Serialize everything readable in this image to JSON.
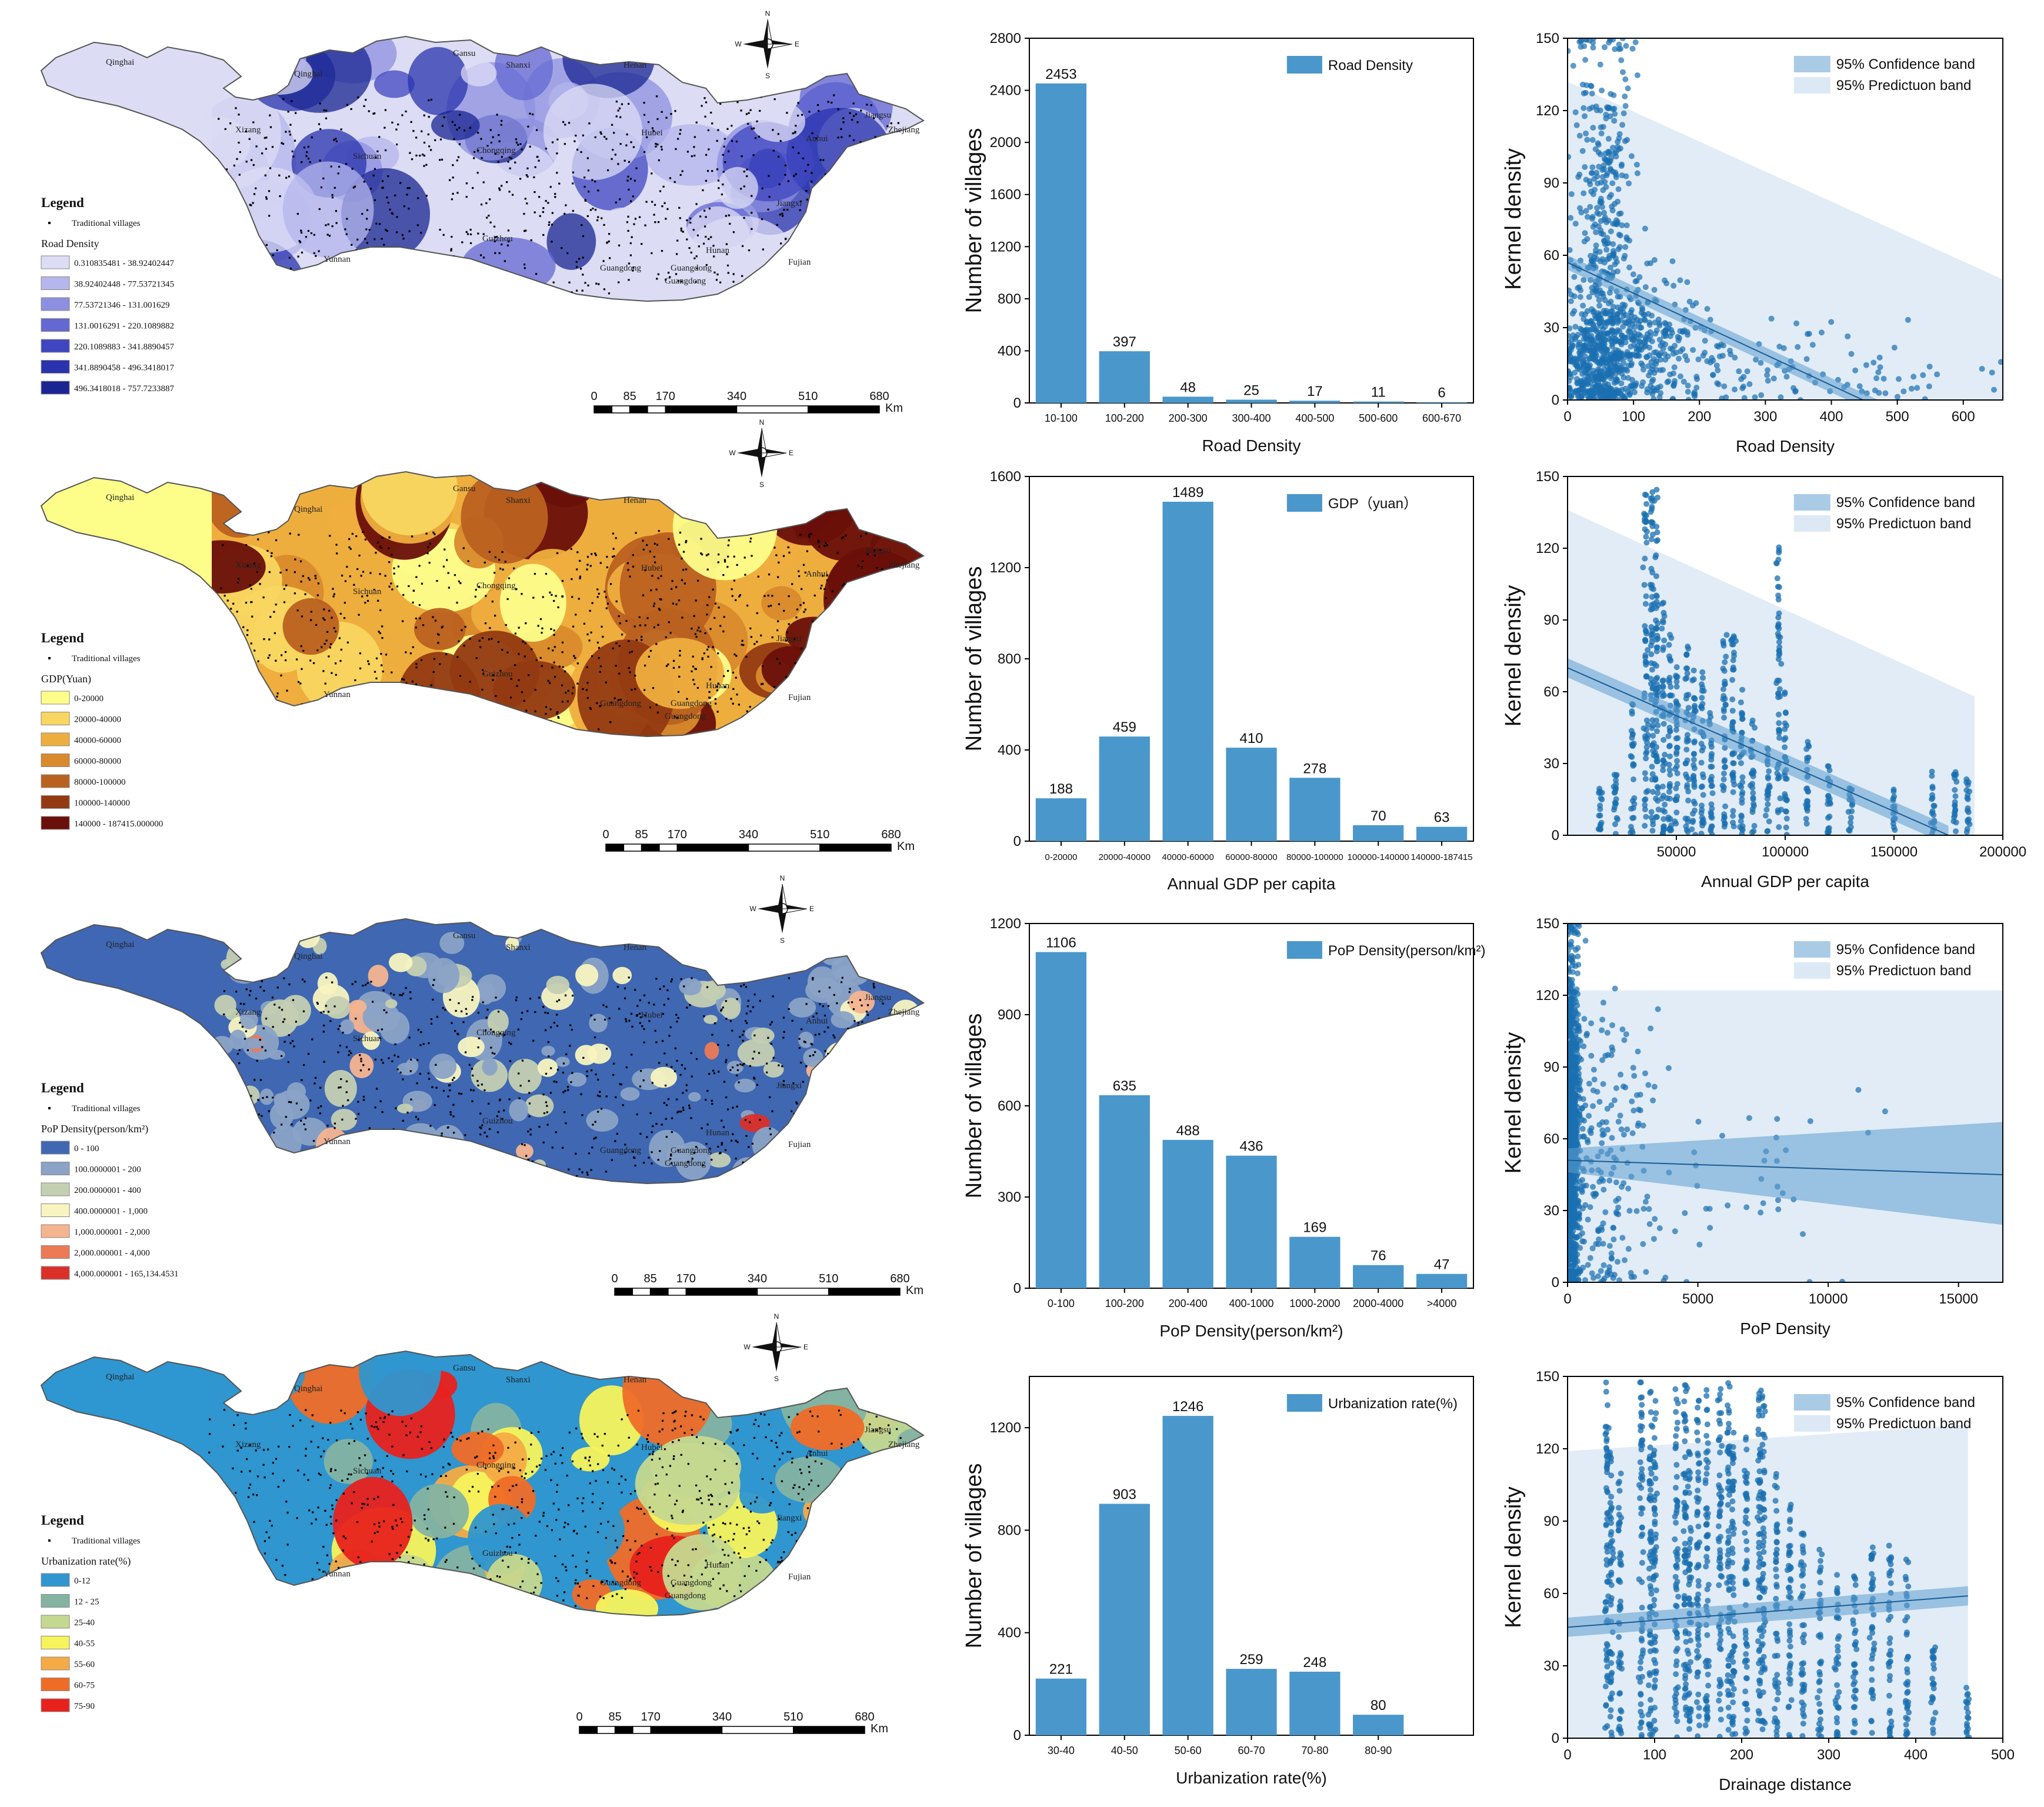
{
  "maps": [
    {
      "key": "road",
      "legend_heading": "Legend",
      "villages_label": "Traditional villages",
      "variable_title": "Road Density",
      "classes": [
        {
          "label": "0.310835481 - 38.92402447",
          "color": "#dcdcf4"
        },
        {
          "label": "38.92402448 - 77.53721345",
          "color": "#b4b6ec"
        },
        {
          "label": "77.53721346 - 131.001629",
          "color": "#8d90e0"
        },
        {
          "label": "131.0016291 - 220.1089882",
          "color": "#6468d2"
        },
        {
          "label": "220.1089883 - 341.8890457",
          "color": "#3f46c0"
        },
        {
          "label": "341.8890458 - 496.3418017",
          "color": "#2833ad"
        },
        {
          "label": "496.3418018 - 757.7233887",
          "color": "#1a2592"
        }
      ],
      "province_labels": [
        "Qinghai",
        "Qinghai",
        "Gansu",
        "Shanxi",
        "Henan",
        "Xizang",
        "Sichuan",
        "Chongqing",
        "Hubei",
        "Guizhou",
        "Yunnan",
        "Guangdong",
        "Guangdong",
        "Guangdong",
        "Hunan",
        "Jiangxi",
        "Anhui",
        "Jiangsu",
        "Zhejiang",
        "Fujian"
      ],
      "scale_ticks": [
        "0",
        "85",
        "170",
        "340",
        "510",
        "680"
      ],
      "scale_unit": "Km"
    },
    {
      "key": "gdp",
      "legend_heading": "Legend",
      "villages_label": "Traditional villages",
      "variable_title": "GDP(Yuan)",
      "classes": [
        {
          "label": "0-20000",
          "color": "#fdfd8a"
        },
        {
          "label": "20000-40000",
          "color": "#f8d660"
        },
        {
          "label": "40000-60000",
          "color": "#eeae3e"
        },
        {
          "label": "60000-80000",
          "color": "#d98a2c"
        },
        {
          "label": "80000-100000",
          "color": "#bb6120"
        },
        {
          "label": "100000-140000",
          "color": "#933a12"
        },
        {
          "label": "140000 - 187415.000000",
          "color": "#6a0f0a"
        }
      ],
      "province_labels": [
        "Qinghai",
        "Qinghai",
        "Gansu",
        "Shanxi",
        "Henan",
        "Xizang",
        "Sichuan",
        "Chongqing",
        "Hubei",
        "Guizhou",
        "Yunnan",
        "Guangdong",
        "Guangdong",
        "Guangdong",
        "Hunan",
        "Jiangxi",
        "Anhui",
        "Jiangsu",
        "Zhejiang",
        "Fujian"
      ],
      "scale_ticks": [
        "0",
        "85",
        "170",
        "340",
        "510",
        "680"
      ],
      "scale_unit": "Km"
    },
    {
      "key": "pop",
      "legend_heading": "Legend",
      "villages_label": "Traditional villages",
      "variable_title": "PoP Density(person/km²)",
      "classes": [
        {
          "label": "0 - 100",
          "color": "#3f67b2"
        },
        {
          "label": "100.0000001 - 200",
          "color": "#8aa3c6"
        },
        {
          "label": "200.0000001 - 400",
          "color": "#c4cfb2"
        },
        {
          "label": "400.0000001 - 1,000",
          "color": "#f8f4c0"
        },
        {
          "label": "1,000.000001 - 2,000",
          "color": "#f5b490"
        },
        {
          "label": "2,000.000001 - 4,000",
          "color": "#ec7a55"
        },
        {
          "label": "4,000.000001 - 165,134.4531",
          "color": "#dc2f2a"
        }
      ],
      "province_labels": [
        "Qinghai",
        "Qinghai",
        "Gansu",
        "Shanxi",
        "Henan",
        "Xizang",
        "Sichuan",
        "Chongqing",
        "Hubei",
        "Guizhou",
        "Yunnan",
        "Guangdong",
        "Guangdong",
        "Guangdong",
        "Hunan",
        "Jiangxi",
        "Anhui",
        "Jiangsu",
        "Zhejiang",
        "Fujian"
      ],
      "scale_ticks": [
        "0",
        "85",
        "170",
        "340",
        "510",
        "680"
      ],
      "scale_unit": "Km"
    },
    {
      "key": "urban",
      "legend_heading": "Legend",
      "villages_label": "Traditional villages",
      "variable_title": "Urbanization rate(%)",
      "classes": [
        {
          "label": "0-12",
          "color": "#2f96cf"
        },
        {
          "label": "12 - 25",
          "color": "#84b3a2"
        },
        {
          "label": "25-40",
          "color": "#c5d88f"
        },
        {
          "label": "40-55",
          "color": "#f7f35b"
        },
        {
          "label": "55-60",
          "color": "#f4ab45"
        },
        {
          "label": "60-75",
          "color": "#ef6c27"
        },
        {
          "label": "75-90",
          "color": "#e8211c"
        }
      ],
      "province_labels": [
        "Qinghai",
        "Qinghai",
        "Gansu",
        "Shanxi",
        "Henan",
        "Xizang",
        "Sichuan",
        "Chongqing",
        "Hubei",
        "Guizhou",
        "Yunnan",
        "Guangdong",
        "Guangdong",
        "Guangdong",
        "Hunan",
        "Jiangxi",
        "Anhui",
        "Jiangsu",
        "Zhejiang",
        "Fujian"
      ],
      "scale_ticks": [
        "0",
        "85",
        "170",
        "340",
        "510",
        "680"
      ],
      "scale_unit": "Km"
    }
  ],
  "compass": {
    "n": "N",
    "s": "S",
    "e": "E",
    "w": "W"
  },
  "chart_data": [
    {
      "type": "bar",
      "id": "bar-road",
      "title": "",
      "legend": "Road Density",
      "categories": [
        "10-100",
        "100-200",
        "200-300",
        "300-400",
        "400-500",
        "500-600",
        "600-670"
      ],
      "values": [
        2453,
        397,
        48,
        25,
        17,
        11,
        6
      ],
      "value_labels": [
        "2453",
        "397",
        "48",
        "25",
        "17",
        "11",
        "6"
      ],
      "xlabel": "Road Density",
      "ylabel": "Number of villages",
      "ylim": [
        0,
        2800
      ],
      "yticks": [
        0,
        400,
        800,
        1200,
        1600,
        2000,
        2400,
        2800
      ],
      "color": "#4a97cb"
    },
    {
      "type": "scatter",
      "id": "sc-road",
      "xlabel": "Road Density",
      "ylabel": "Kernel density",
      "xlim": [
        0,
        660
      ],
      "ylim": [
        0,
        150
      ],
      "xticks": [
        0,
        100,
        200,
        300,
        400,
        500,
        600
      ],
      "yticks": [
        0,
        30,
        60,
        90,
        120,
        150
      ],
      "legend": [
        "95% Confidence band",
        "95% Predictuon band"
      ],
      "fit": {
        "x0": 0,
        "y0": 57,
        "x1": 660,
        "y1": -27
      },
      "pred_band": {
        "x0": 0,
        "lo0": 0,
        "hi0": 132,
        "x1": 660,
        "lo1": 0,
        "hi1": 50
      },
      "conf_half_width": 3,
      "clusters": [
        {
          "xc": 55,
          "xs": 22,
          "yc": 75,
          "ys": 45,
          "n": 380
        },
        {
          "xc": 45,
          "xs": 25,
          "yc": 15,
          "ys": 12,
          "n": 380
        },
        {
          "xc": 110,
          "xs": 45,
          "yc": 25,
          "ys": 15,
          "n": 280
        },
        {
          "xc": 260,
          "xs": 110,
          "yc": 14,
          "ys": 10,
          "n": 110
        },
        {
          "xc": 520,
          "xs": 80,
          "yc": 8,
          "ys": 6,
          "n": 25
        }
      ],
      "color": "#1a6fb0"
    },
    {
      "type": "bar",
      "id": "bar-gdp",
      "title": "",
      "legend": "GDP（yuan）",
      "categories": [
        "0-20000",
        "20000-40000",
        "40000-60000",
        "60000-80000",
        "80000-100000",
        "100000-140000",
        "140000-187415"
      ],
      "values": [
        188,
        459,
        1489,
        410,
        278,
        70,
        63
      ],
      "value_labels": [
        "188",
        "459",
        "1489",
        "410",
        "278",
        "70",
        "63"
      ],
      "xlabel": "Annual GDP per capita",
      "ylabel": "Number of villages",
      "ylim": [
        0,
        1600
      ],
      "yticks": [
        0,
        400,
        800,
        1200,
        1600
      ],
      "color": "#4a97cb"
    },
    {
      "type": "scatter",
      "id": "sc-gdp",
      "xlabel": "Annual GDP per capita",
      "ylabel": "Kernel density",
      "xlim": [
        0,
        200000
      ],
      "ylim": [
        0,
        150
      ],
      "xticks": [
        50000,
        100000,
        150000,
        200000
      ],
      "yticks": [
        0,
        30,
        60,
        90,
        120,
        150
      ],
      "legend": [
        "95% Confidence band",
        "95% Predictuon band"
      ],
      "fit": {
        "x0": 0,
        "y0": 70,
        "x1": 175000,
        "y1": 0
      },
      "pred_band": {
        "x0": 0,
        "lo0": 0,
        "hi0": 136,
        "x1": 187000,
        "lo1": 0,
        "hi1": 58
      },
      "conf_half_width": 4,
      "columns": [
        15000,
        22000,
        30000,
        36000,
        39000,
        41000,
        44000,
        47000,
        50000,
        55000,
        58000,
        62000,
        66000,
        72000,
        76000,
        80000,
        85000,
        92000,
        97000,
        100000,
        110000,
        120000,
        130000,
        150000,
        168000,
        178000,
        184000
      ],
      "column_max": [
        22,
        30,
        55,
        145,
        145,
        145,
        98,
        90,
        75,
        80,
        70,
        70,
        55,
        88,
        85,
        65,
        50,
        40,
        128,
        60,
        40,
        30,
        20,
        20,
        28,
        27,
        24
      ],
      "color": "#1a6fb0"
    },
    {
      "type": "bar",
      "id": "bar-pop",
      "title": "",
      "legend": "PoP Density(person/km²)",
      "categories": [
        "0-100",
        "100-200",
        "200-400",
        "400-1000",
        "1000-2000",
        "2000-4000",
        ">4000"
      ],
      "values": [
        1106,
        635,
        488,
        436,
        169,
        76,
        47
      ],
      "value_labels": [
        "1106",
        "635",
        "488",
        "436",
        "169",
        "76",
        "47"
      ],
      "xlabel": "PoP Density(person/km²)",
      "ylabel": "Number of villages",
      "ylim": [
        0,
        1200
      ],
      "yticks": [
        0,
        300,
        600,
        900,
        1200
      ],
      "color": "#4a97cb"
    },
    {
      "type": "scatter",
      "id": "sc-pop",
      "xlabel": "PoP Density",
      "ylabel": "Kernel density",
      "xlim": [
        0,
        16700
      ],
      "ylim": [
        0,
        150
      ],
      "xticks": [
        0,
        5000,
        10000,
        15000
      ],
      "yticks": [
        0,
        30,
        60,
        90,
        120,
        150
      ],
      "legend": [
        "95% Confidence band",
        "95% Predictuon band"
      ],
      "fit": {
        "x0": 0,
        "y0": 51,
        "x1": 16700,
        "y1": 45
      },
      "pred_band": {
        "x0": 0,
        "lo0": 0,
        "hi0": 122,
        "x1": 16700,
        "lo1": 0,
        "hi1": 122
      },
      "conf_half_width": 0,
      "conf_band": {
        "x0": 0,
        "lo0": 46,
        "hi0": 56,
        "x1": 16700,
        "lo1": 24,
        "hi1": 67
      },
      "clusters": [
        {
          "xc": 150,
          "xs": 160,
          "yc": 60,
          "ys": 40,
          "n": 900
        },
        {
          "xc": 1200,
          "xs": 900,
          "yc": 45,
          "ys": 35,
          "n": 200
        },
        {
          "xc": 5000,
          "xs": 3500,
          "yc": 40,
          "ys": 28,
          "n": 70
        }
      ],
      "color": "#1a6fb0"
    },
    {
      "type": "bar",
      "id": "bar-urban",
      "title": "",
      "legend": "Urbanization rate(%)",
      "categories": [
        "30-40",
        "40-50",
        "50-60",
        "60-70",
        "70-80",
        "80-90"
      ],
      "values": [
        221,
        903,
        1246,
        259,
        248,
        80
      ],
      "value_labels": [
        "221",
        "903",
        "1246",
        "259",
        "248",
        "80"
      ],
      "xlabel": "Urbanization rate(%)",
      "ylabel": "Number of villages",
      "ylim": [
        0,
        1400
      ],
      "yticks": [
        0,
        400,
        800,
        1200
      ],
      "color": "#4a97cb"
    },
    {
      "type": "scatter",
      "id": "sc-drain",
      "xlabel": "Drainage distance",
      "ylabel": "Kernel density",
      "xlim": [
        0,
        500
      ],
      "ylim": [
        0,
        150
      ],
      "xticks": [
        0,
        100,
        200,
        300,
        400,
        500
      ],
      "yticks": [
        0,
        30,
        60,
        90,
        120,
        150
      ],
      "legend": [
        "95% Confidence band",
        "95% Predictuon band"
      ],
      "fit": {
        "x0": 0,
        "y0": 46,
        "x1": 460,
        "y1": 59
      },
      "pred_band": {
        "x0": 0,
        "lo0": 0,
        "hi0": 119,
        "x1": 460,
        "lo1": 0,
        "hi1": 130
      },
      "conf_half_width": 4,
      "columns": [
        45,
        50,
        60,
        85,
        95,
        100,
        125,
        135,
        140,
        150,
        160,
        175,
        185,
        190,
        205,
        220,
        225,
        240,
        255,
        270,
        290,
        310,
        330,
        350,
        370,
        390,
        420,
        460
      ],
      "column_max": [
        148,
        120,
        110,
        148,
        145,
        140,
        145,
        148,
        120,
        140,
        145,
        145,
        148,
        130,
        125,
        145,
        145,
        110,
        100,
        85,
        80,
        70,
        70,
        80,
        80,
        75,
        40,
        22
      ],
      "color": "#1a6fb0"
    }
  ]
}
